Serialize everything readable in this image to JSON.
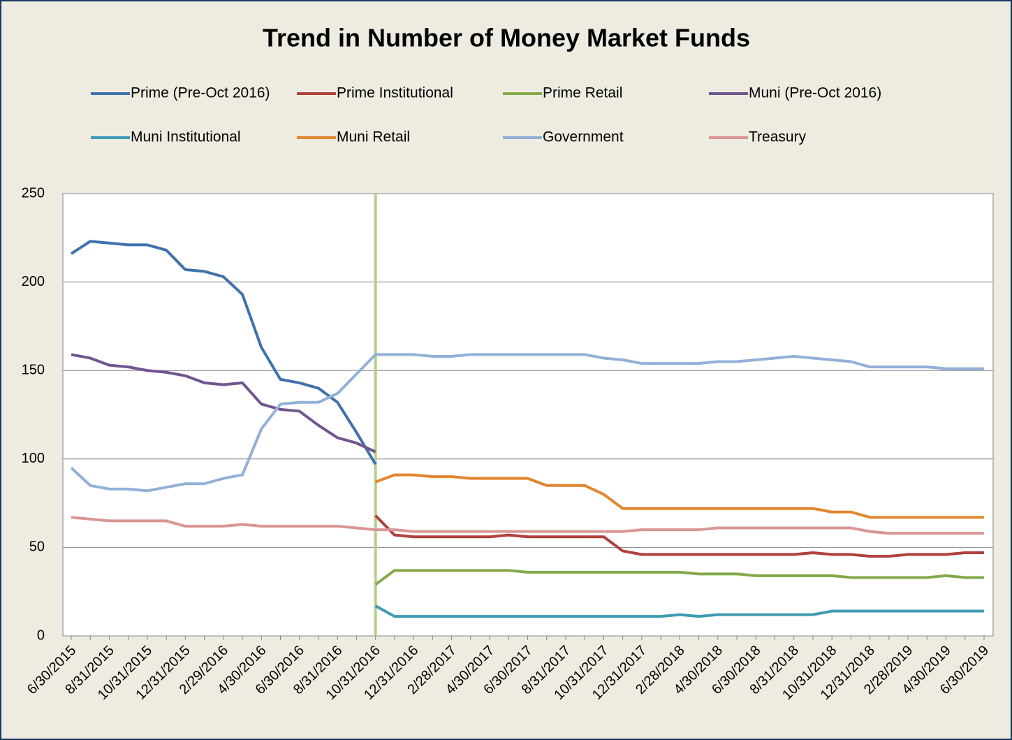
{
  "chart_data": {
    "type": "line",
    "title": "Trend in Number of  Money Market Funds",
    "categories": [
      "6/30/2015",
      null,
      "8/31/2015",
      null,
      "10/31/2015",
      null,
      "12/31/2015",
      null,
      "2/29/2016",
      null,
      "4/30/2016",
      null,
      "6/30/2016",
      null,
      "8/31/2016",
      null,
      "10/31/2016",
      null,
      "12/31/2016",
      null,
      "2/28/2017",
      null,
      "4/30/2017",
      null,
      "6/30/2017",
      null,
      "8/31/2017",
      null,
      "10/31/2017",
      null,
      "12/31/2017",
      null,
      "2/28/2018",
      null,
      "4/30/2018",
      null,
      "6/30/2018",
      null,
      "8/31/2018",
      null,
      "10/31/2018",
      null,
      "12/31/2018",
      null,
      "2/28/2019",
      null,
      "4/30/2019",
      null,
      "6/30/2019"
    ],
    "series": [
      {
        "name": "Prime (Pre-Oct 2016)",
        "color": "#3f72ad",
        "values": [
          216,
          223,
          222,
          221,
          221,
          218,
          207,
          206,
          203,
          193,
          163,
          145,
          143,
          140,
          132,
          115,
          97,
          null,
          null,
          null,
          null,
          null,
          null,
          null,
          null,
          null,
          null,
          null,
          null,
          null,
          null,
          null,
          null,
          null,
          null,
          null,
          null,
          null,
          null,
          null,
          null,
          null,
          null,
          null,
          null,
          null,
          null,
          null,
          null
        ]
      },
      {
        "name": "Prime Institutional",
        "color": "#b0413e",
        "values": [
          null,
          null,
          null,
          null,
          null,
          null,
          null,
          null,
          null,
          null,
          null,
          null,
          null,
          null,
          null,
          null,
          68,
          57,
          56,
          56,
          56,
          56,
          56,
          57,
          56,
          56,
          56,
          56,
          56,
          48,
          46,
          46,
          46,
          46,
          46,
          46,
          46,
          46,
          46,
          47,
          46,
          46,
          45,
          45,
          46,
          46,
          46,
          47,
          47
        ]
      },
      {
        "name": "Prime Retail",
        "color": "#84a94a",
        "values": [
          null,
          null,
          null,
          null,
          null,
          null,
          null,
          null,
          null,
          null,
          null,
          null,
          null,
          null,
          null,
          null,
          29,
          37,
          37,
          37,
          37,
          37,
          37,
          37,
          36,
          36,
          36,
          36,
          36,
          36,
          36,
          36,
          36,
          35,
          35,
          35,
          34,
          34,
          34,
          34,
          34,
          33,
          33,
          33,
          33,
          33,
          34,
          33,
          33
        ]
      },
      {
        "name": "Muni (Pre-Oct 2016)",
        "color": "#71558f",
        "values": [
          159,
          157,
          153,
          152,
          150,
          149,
          147,
          143,
          142,
          143,
          131,
          128,
          127,
          119,
          112,
          109,
          104,
          null,
          null,
          null,
          null,
          null,
          null,
          null,
          null,
          null,
          null,
          null,
          null,
          null,
          null,
          null,
          null,
          null,
          null,
          null,
          null,
          null,
          null,
          null,
          null,
          null,
          null,
          null,
          null,
          null,
          null,
          null,
          null
        ]
      },
      {
        "name": "Muni Institutional",
        "color": "#3f9bb3",
        "values": [
          null,
          null,
          null,
          null,
          null,
          null,
          null,
          null,
          null,
          null,
          null,
          null,
          null,
          null,
          null,
          null,
          17,
          11,
          11,
          11,
          11,
          11,
          11,
          11,
          11,
          11,
          11,
          11,
          11,
          11,
          11,
          11,
          12,
          11,
          12,
          12,
          12,
          12,
          12,
          12,
          14,
          14,
          14,
          14,
          14,
          14,
          14,
          14,
          14
        ]
      },
      {
        "name": "Muni Retail",
        "color": "#e2862f",
        "values": [
          null,
          null,
          null,
          null,
          null,
          null,
          null,
          null,
          null,
          null,
          null,
          null,
          null,
          null,
          null,
          null,
          87,
          91,
          91,
          90,
          90,
          89,
          89,
          89,
          89,
          85,
          85,
          85,
          80,
          72,
          72,
          72,
          72,
          72,
          72,
          72,
          72,
          72,
          72,
          72,
          70,
          70,
          67,
          67,
          67,
          67,
          67,
          67,
          67
        ]
      },
      {
        "name": "Government",
        "color": "#93b0d8",
        "values": [
          95,
          85,
          83,
          83,
          82,
          84,
          86,
          86,
          89,
          91,
          117,
          131,
          132,
          132,
          137,
          148,
          159,
          159,
          159,
          158,
          158,
          159,
          159,
          159,
          159,
          159,
          159,
          159,
          157,
          156,
          154,
          154,
          154,
          154,
          155,
          155,
          156,
          157,
          158,
          157,
          156,
          155,
          152,
          152,
          152,
          152,
          151,
          151,
          151
        ]
      },
      {
        "name": "Treasury",
        "color": "#d99694",
        "values": [
          67,
          66,
          65,
          65,
          65,
          65,
          62,
          62,
          62,
          63,
          62,
          62,
          62,
          62,
          62,
          61,
          60,
          60,
          59,
          59,
          59,
          59,
          59,
          59,
          59,
          59,
          59,
          59,
          59,
          59,
          60,
          60,
          60,
          60,
          61,
          61,
          61,
          61,
          61,
          61,
          61,
          61,
          59,
          58,
          58,
          58,
          58,
          58,
          58
        ]
      }
    ],
    "ylim": [
      0,
      250
    ],
    "yticks": [
      0,
      50,
      100,
      150,
      200,
      250
    ],
    "grid": true,
    "legend": "top",
    "reference_line": {
      "category": "10/31/2016",
      "color": "#b5cf8a"
    }
  }
}
